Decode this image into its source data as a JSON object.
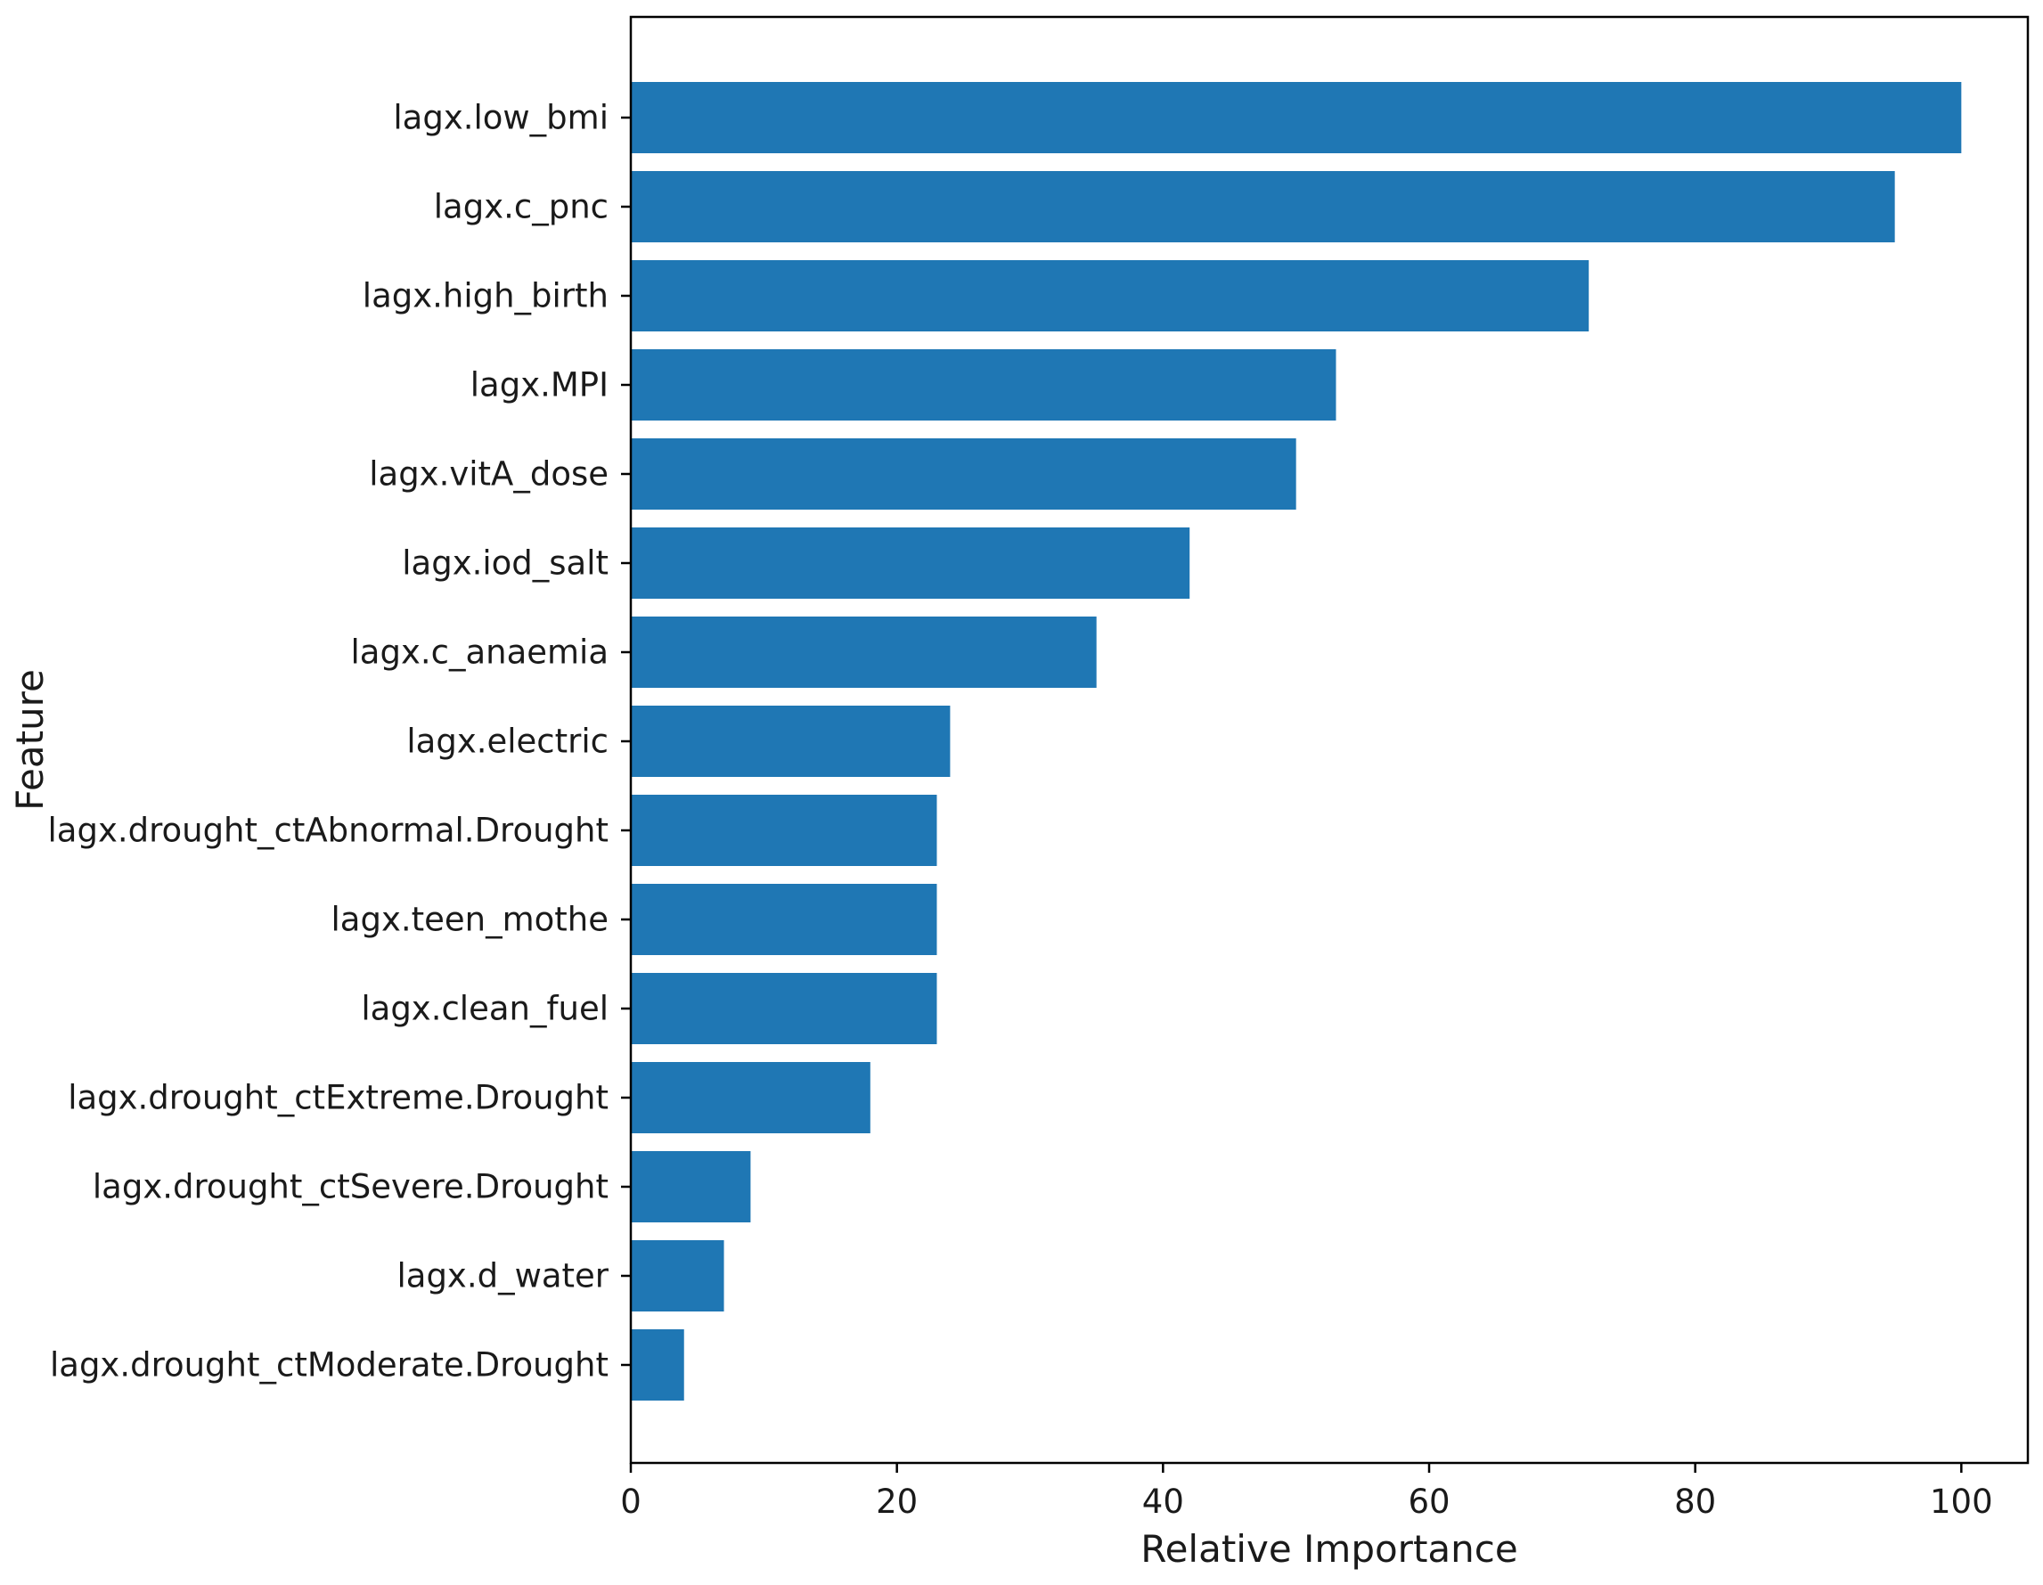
{
  "chart_data": {
    "type": "bar",
    "orientation": "horizontal",
    "categories": [
      "lagx.low_bmi",
      "lagx.c_pnc",
      "lagx.high_birth",
      "lagx.MPI",
      "lagx.vitA_dose",
      "lagx.iod_salt",
      "lagx.c_anaemia",
      "lagx.electric",
      "lagx.drought_ctAbnormal.Drought",
      "lagx.teen_mothe",
      "lagx.clean_fuel",
      "lagx.drought_ctExtreme.Drought",
      "lagx.drought_ctSevere.Drought",
      "lagx.d_water",
      "lagx.drought_ctModerate.Drought"
    ],
    "values": [
      100,
      95,
      72,
      53,
      50,
      42,
      35,
      24,
      23,
      23,
      23,
      18,
      9,
      7,
      4
    ],
    "title": "",
    "xlabel": "Relative Importance",
    "ylabel": "Feature",
    "xlim": [
      0,
      105
    ],
    "xticks": [
      0,
      20,
      40,
      60,
      80,
      100
    ],
    "grid": false,
    "bar_color": "#1f77b4"
  }
}
